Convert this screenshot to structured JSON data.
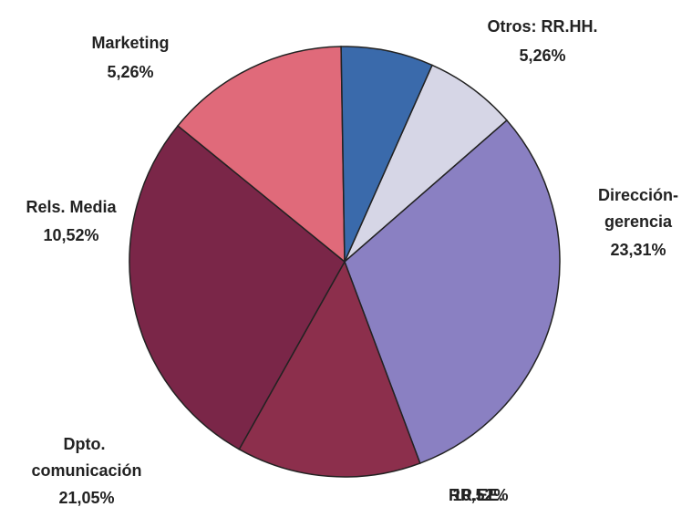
{
  "chart_data": {
    "type": "pie",
    "categories": [
      "Otros: RR.HH.",
      "Dirección-gerencia",
      "RR.EE.",
      "Dpto. comunicación",
      "Rels. Media",
      "Marketing"
    ],
    "values": [
      5.26,
      23.31,
      10.52,
      21.05,
      10.52,
      5.26
    ],
    "value_labels": [
      "5,26%",
      "23,31%",
      "10,52%",
      "21,05%",
      "10,52%",
      "5,26%"
    ],
    "colors": [
      "#d6d6e6",
      "#8a80c2",
      "#8c2f4c",
      "#7a2648",
      "#e06a7a",
      "#3a6aab"
    ]
  }
}
